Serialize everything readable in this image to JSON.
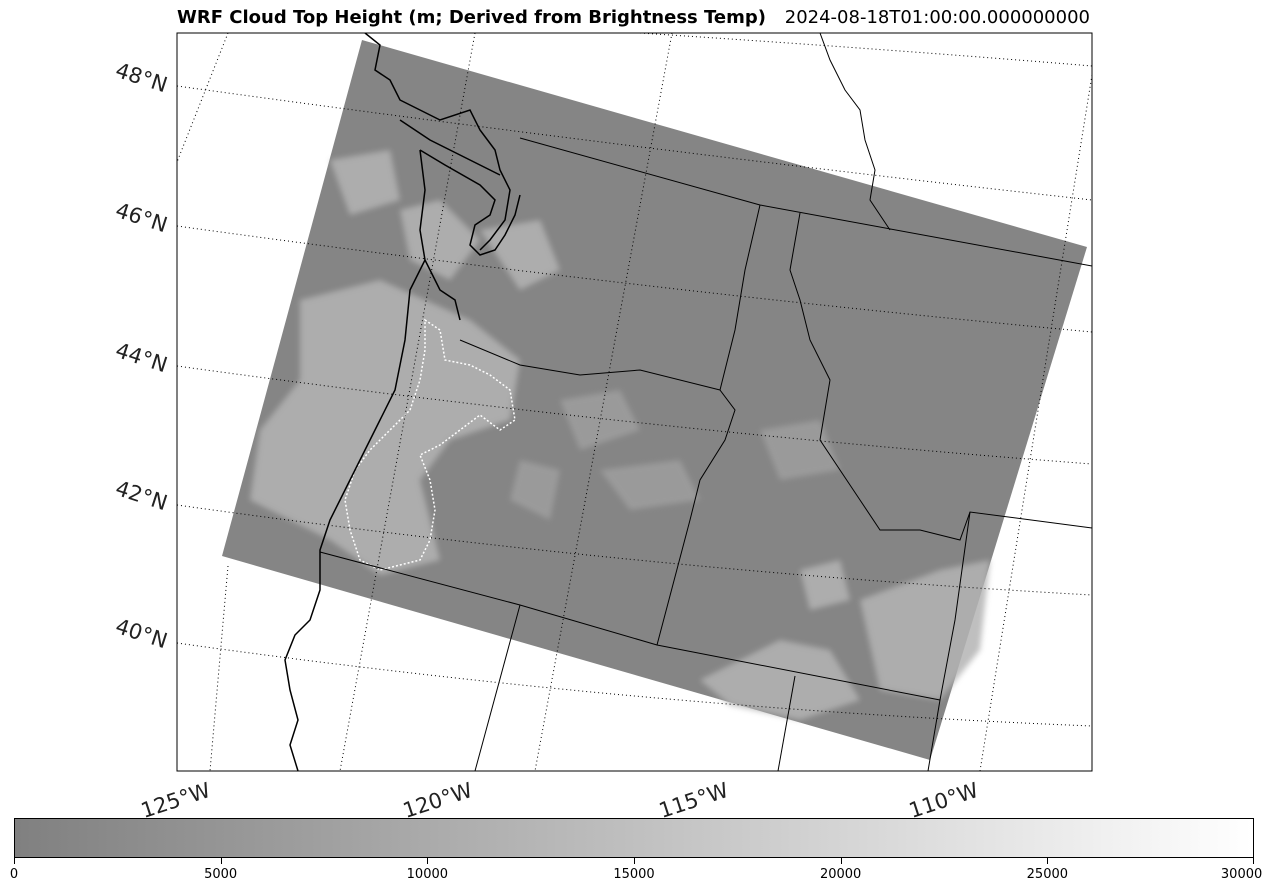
{
  "header": {
    "title": "WRF Cloud Top Height (m; Derived from Brightness Temp)",
    "timestamp": "2024-08-18T01:00:00.000000000"
  },
  "map": {
    "latitude_labels": [
      "48°N",
      "46°N",
      "44°N",
      "42°N",
      "40°N"
    ],
    "longitude_labels": [
      "125°W",
      "120°W",
      "115°W",
      "110°W"
    ],
    "colors": {
      "field_base": "#858585",
      "cloud": "#bdbdbd",
      "coast": "#000000",
      "grid": "#000000"
    }
  },
  "colorbar": {
    "min": 0,
    "max": 30000,
    "colormap": [
      "#808080",
      "#ffffff"
    ],
    "ticks": [
      "0",
      "5000",
      "10000",
      "15000",
      "20000",
      "25000",
      "30000"
    ]
  }
}
